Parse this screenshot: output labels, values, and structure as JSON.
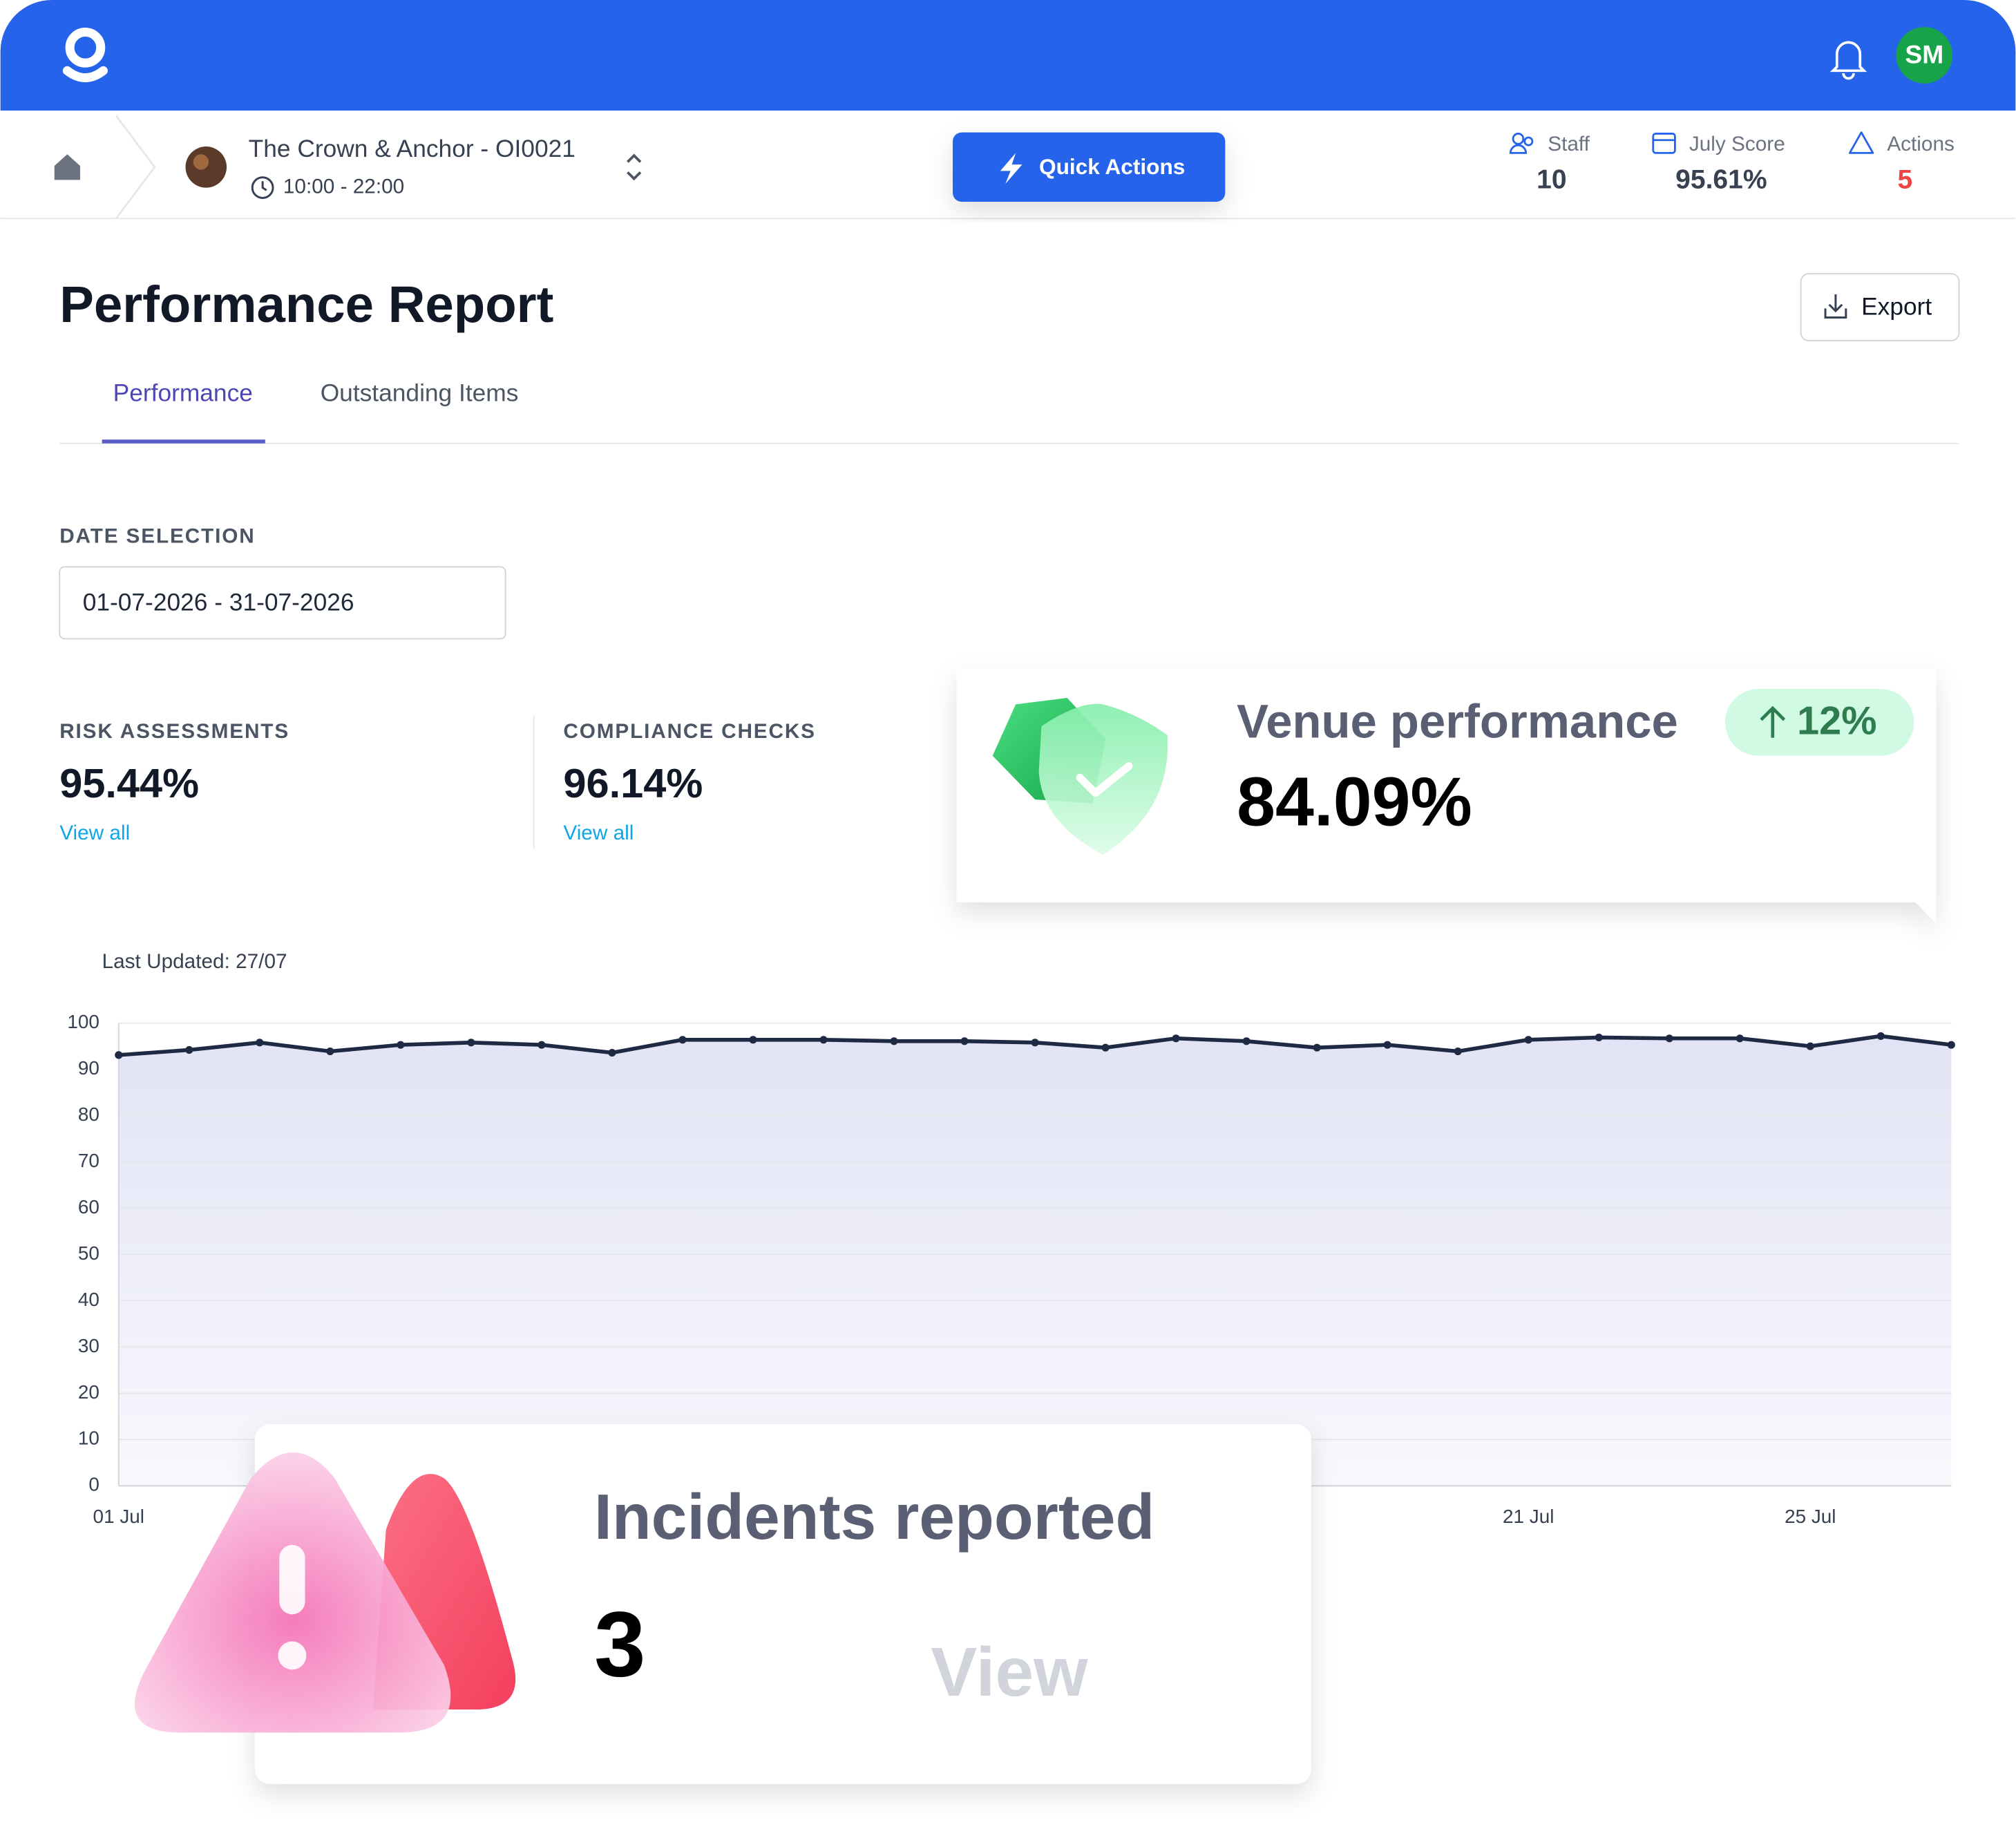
{
  "header": {
    "avatar": "SM"
  },
  "venue": {
    "name": "The Crown & Anchor - OI0021",
    "hours": "10:00 - 22:00"
  },
  "quick_actions": "Quick Actions",
  "stats": [
    {
      "label": "Staff",
      "value": "10"
    },
    {
      "label": "July Score",
      "value": "95.61%"
    },
    {
      "label": "Actions",
      "value": "5"
    }
  ],
  "page": {
    "title": "Performance Report",
    "export": "Export",
    "tabs": [
      "Performance",
      "Outstanding Items"
    ]
  },
  "date_selection": {
    "label": "DATE SELECTION",
    "value": "01-07-2026 - 31-07-2026"
  },
  "metrics": [
    {
      "label": "RISK ASSESSMENTS",
      "value": "95.44%",
      "link": "View all"
    },
    {
      "label": "COMPLIANCE CHECKS",
      "value": "96.14%",
      "link": "View all"
    }
  ],
  "venue_performance": {
    "title": "Venue performance",
    "value": "84.09%",
    "change": "12%"
  },
  "chart_data": {
    "type": "line",
    "subtitle": "Last Updated: 27/07",
    "categories": [
      "01 Jul",
      null,
      null,
      null,
      null,
      null,
      null,
      null,
      null,
      null,
      null,
      null,
      null,
      null,
      null,
      null,
      null,
      null,
      null,
      null,
      "21 Jul",
      null,
      null,
      null,
      "25 Jul",
      null,
      null
    ],
    "values": [
      93.1,
      94.2,
      95.8,
      93.9,
      95.3,
      95.8,
      95.3,
      93.6,
      96.4,
      96.4,
      96.4,
      96.1,
      96.1,
      95.8,
      94.7,
      96.7,
      96.1,
      94.7,
      95.3,
      93.9,
      96.4,
      96.9,
      96.7,
      96.7,
      95.0,
      97.2,
      95.3
    ],
    "color": "#1e2a44",
    "ylim": [
      0,
      100
    ],
    "yticks": [
      0,
      10,
      20,
      30,
      40,
      50,
      60,
      70,
      80,
      90,
      100
    ],
    "grid": true
  },
  "incidents": {
    "title": "Incidents reported",
    "value": "3",
    "action": "View"
  }
}
